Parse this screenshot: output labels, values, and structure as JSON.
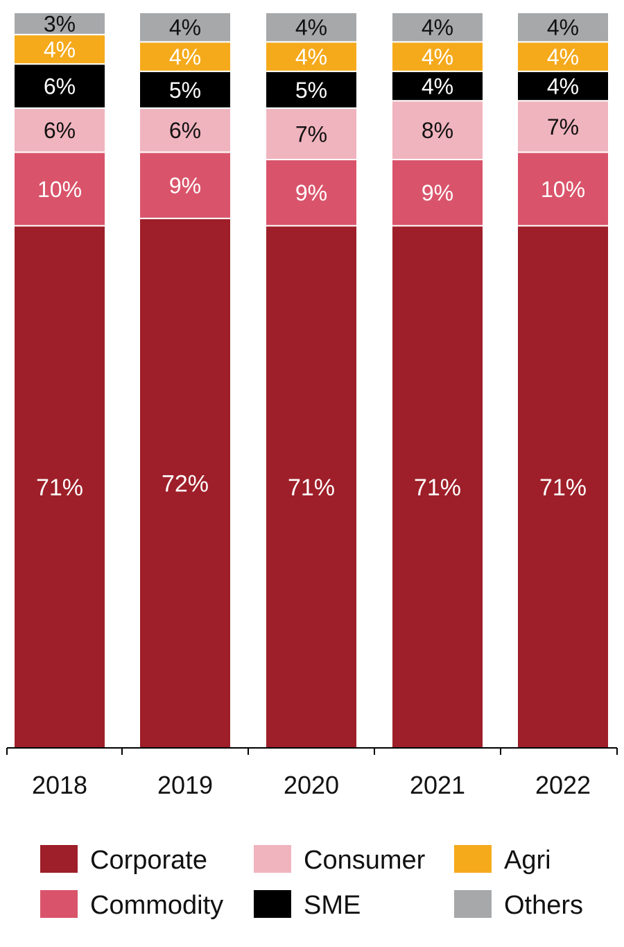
{
  "chart_data": {
    "type": "bar",
    "stacked": true,
    "categories": [
      "2018",
      "2019",
      "2020",
      "2021",
      "2022"
    ],
    "series": [
      {
        "name": "Corporate",
        "color": "#9e1f29",
        "label_color": "#ffffff",
        "values": [
          71,
          72,
          71,
          71,
          71
        ],
        "labels": [
          "71%",
          "72%",
          "71%",
          "71%",
          "71%"
        ]
      },
      {
        "name": "Commodity",
        "color": "#d9546b",
        "label_color": "#ffffff",
        "values": [
          10,
          9,
          9,
          9,
          10
        ],
        "labels": [
          "10%",
          "9%",
          "9%",
          "9%",
          "10%"
        ]
      },
      {
        "name": "Consumer",
        "color": "#f0b4be",
        "label_color": "#111111",
        "values": [
          6,
          6,
          7,
          8,
          7
        ],
        "labels": [
          "6%",
          "6%",
          "7%",
          "8%",
          "7%"
        ]
      },
      {
        "name": "SME",
        "color": "#000000",
        "label_color": "#ffffff",
        "values": [
          6,
          5,
          5,
          4,
          4
        ],
        "labels": [
          "6%",
          "5%",
          "5%",
          "4%",
          "4%"
        ]
      },
      {
        "name": "Agri",
        "color": "#f5aa1c",
        "label_color": "#ffffff",
        "values": [
          4,
          4,
          4,
          4,
          4
        ],
        "labels": [
          "4%",
          "4%",
          "4%",
          "4%",
          "4%"
        ]
      },
      {
        "name": "Others",
        "color": "#a6a8aa",
        "label_color": "#111111",
        "values": [
          3,
          4,
          4,
          4,
          4
        ],
        "labels": [
          "3%",
          "4%",
          "4%",
          "4%",
          "4%"
        ]
      }
    ],
    "ylim": [
      0,
      100
    ],
    "grid": false,
    "legend": {
      "placement": "bottom",
      "order": [
        "Corporate",
        "Consumer",
        "Agri",
        "Commodity",
        "SME",
        "Others"
      ]
    }
  }
}
